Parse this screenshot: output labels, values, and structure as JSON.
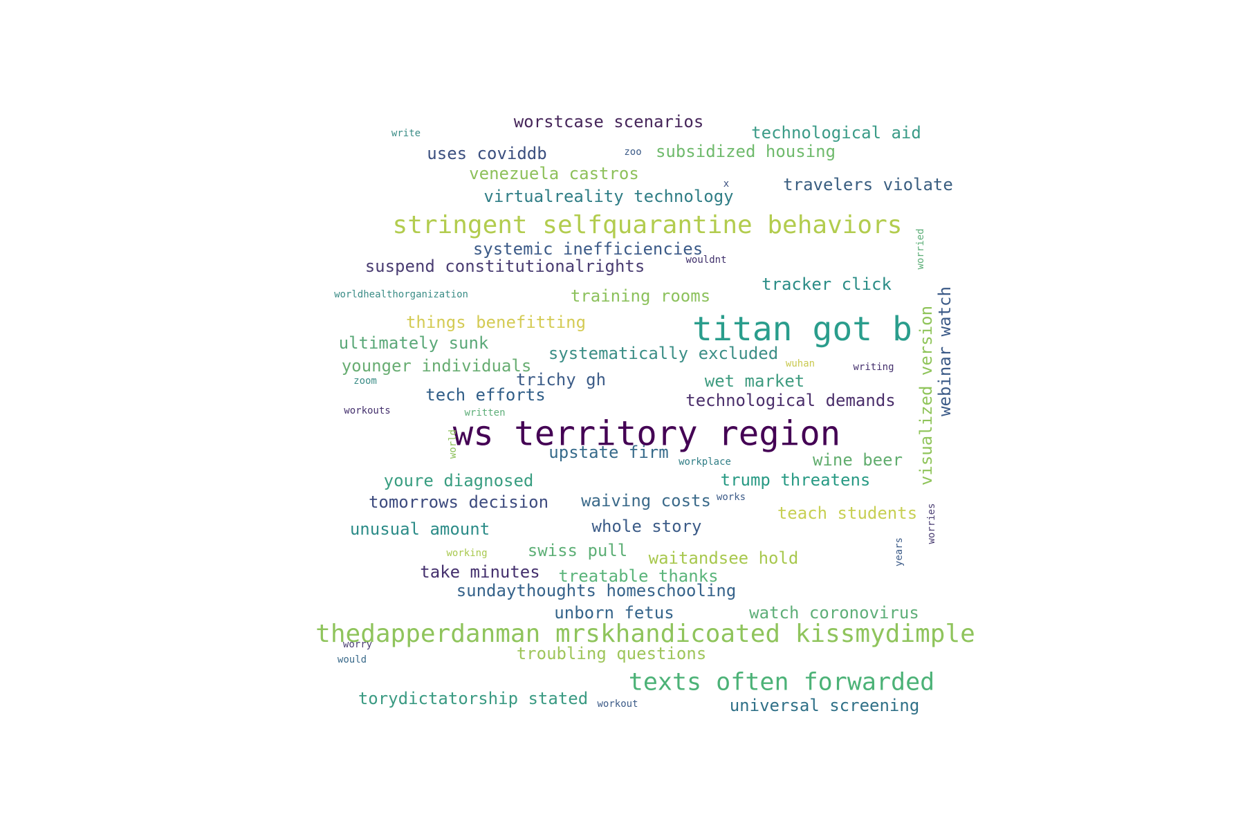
{
  "words": [
    {
      "text": "ws territory region",
      "color": "#440154"
    },
    {
      "text": "titan got b",
      "color": "#2a9d8c"
    },
    {
      "text": "stringent selfquarantine behaviors",
      "color": "#b2cc4e"
    },
    {
      "text": "thedapperdanman mrskhandicoated kissmydimple",
      "color": "#8fc45c"
    },
    {
      "text": "texts often forwarded",
      "color": "#4cb277"
    },
    {
      "text": "worstcase scenarios",
      "color": "#46265a"
    },
    {
      "text": "technological aid",
      "color": "#3a9b87"
    },
    {
      "text": "uses coviddb",
      "color": "#3b4f7f"
    },
    {
      "text": "subsidized housing",
      "color": "#6fba6c"
    },
    {
      "text": "venezuela castros",
      "color": "#8dc05a"
    },
    {
      "text": "travelers violate",
      "color": "#3a5e80"
    },
    {
      "text": "virtualreality technology",
      "color": "#2f7d85"
    },
    {
      "text": "systemic inefficiencies",
      "color": "#3b5a87"
    },
    {
      "text": "suspend constitutionalrights",
      "color": "#4a3d72"
    },
    {
      "text": "tracker click",
      "color": "#2a8c86"
    },
    {
      "text": "training rooms",
      "color": "#8cc15c"
    },
    {
      "text": "things benefitting",
      "color": "#d4cb54"
    },
    {
      "text": "ultimately sunk",
      "color": "#5aa878"
    },
    {
      "text": "systematically excluded",
      "color": "#3b8e86"
    },
    {
      "text": "younger individuals",
      "color": "#68ad72"
    },
    {
      "text": "trichy gh",
      "color": "#3b5b87"
    },
    {
      "text": "wet market",
      "color": "#3e9b7f"
    },
    {
      "text": "tech efforts",
      "color": "#2f5d87"
    },
    {
      "text": "technological demands",
      "color": "#4a2e6a"
    },
    {
      "text": "upstate firm",
      "color": "#366a8a"
    },
    {
      "text": "wine beer",
      "color": "#61ad6e"
    },
    {
      "text": "youre diagnosed",
      "color": "#389d80"
    },
    {
      "text": "trump threatens",
      "color": "#289a84"
    },
    {
      "text": "tomorrows decision",
      "color": "#3c4a7e"
    },
    {
      "text": "waiving costs",
      "color": "#3b6a8a"
    },
    {
      "text": "teach students",
      "color": "#c7cf52"
    },
    {
      "text": "unusual amount",
      "color": "#2c8c88"
    },
    {
      "text": "whole story",
      "color": "#3b5b87"
    },
    {
      "text": "swiss pull",
      "color": "#5daf76"
    },
    {
      "text": "waitandsee hold",
      "color": "#a8c84e"
    },
    {
      "text": "take minutes",
      "color": "#44306d"
    },
    {
      "text": "treatable thanks",
      "color": "#5ab47a"
    },
    {
      "text": "sundaythoughts homeschooling",
      "color": "#35628a"
    },
    {
      "text": "unborn fetus",
      "color": "#35648a"
    },
    {
      "text": "watch coronovirus",
      "color": "#5dae78"
    },
    {
      "text": "troubling questions",
      "color": "#9ec55a"
    },
    {
      "text": "torydictatorship stated",
      "color": "#3a9a82"
    },
    {
      "text": "universal screening",
      "color": "#2f7087"
    },
    {
      "text": "visualized version",
      "color": "#8fc45a"
    },
    {
      "text": "webinar watch",
      "color": "#3b5a87"
    },
    {
      "text": "write",
      "color": "#3a8c86"
    },
    {
      "text": "zoo",
      "color": "#3b5a87"
    },
    {
      "text": "x",
      "color": "#3b4f7f"
    },
    {
      "text": "wouldnt",
      "color": "#3f2f6a"
    },
    {
      "text": "worried",
      "color": "#5dae78"
    },
    {
      "text": "worldhealthorganization",
      "color": "#3a8c86"
    },
    {
      "text": "wuhan",
      "color": "#c9c94f"
    },
    {
      "text": "writing",
      "color": "#44306d"
    },
    {
      "text": "zoom",
      "color": "#3a8c86"
    },
    {
      "text": "workouts",
      "color": "#44306d"
    },
    {
      "text": "written",
      "color": "#5dae78"
    },
    {
      "text": "world",
      "color": "#8dc05a"
    },
    {
      "text": "workplace",
      "color": "#2f7d85"
    },
    {
      "text": "works",
      "color": "#3b5a87"
    },
    {
      "text": "worries",
      "color": "#4a3d72"
    },
    {
      "text": "working",
      "color": "#a8c84e"
    },
    {
      "text": "years",
      "color": "#3b5a87"
    },
    {
      "text": "worry",
      "color": "#4a3d72"
    },
    {
      "text": "would",
      "color": "#3a6a8a"
    },
    {
      "text": "workout",
      "color": "#3b5a87"
    }
  ]
}
